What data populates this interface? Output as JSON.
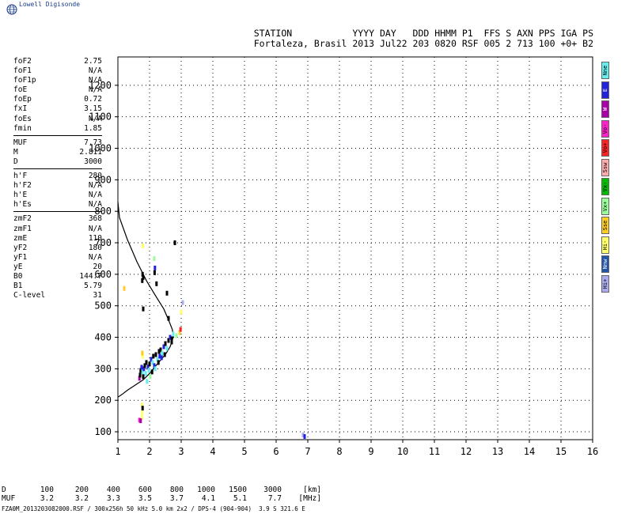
{
  "brand": {
    "name": "Lowell Digisonde",
    "logo_icon": "globe-icon"
  },
  "header": {
    "line1": "STATION           YYYY DAY   DDD HHMM P1  FFS S AXN PPS IGA PS",
    "line2": "Fortaleza, Brasil 2013 Jul22 203 0820 RSF 005 2 713 100 +0+ B2"
  },
  "parameters": {
    "group1": [
      {
        "label": "foF2",
        "value": "2.75"
      },
      {
        "label": "foF1",
        "value": "N/A"
      },
      {
        "label": "foF1p",
        "value": "N/A"
      },
      {
        "label": "foE",
        "value": "N/A"
      },
      {
        "label": "foEp",
        "value": "0.72"
      },
      {
        "label": "fxI",
        "value": "3.15"
      },
      {
        "label": "foEs",
        "value": "N/A"
      },
      {
        "label": "fmin",
        "value": "1.85"
      }
    ],
    "group2": [
      {
        "label": "MUF",
        "value": "7.73"
      },
      {
        "label": "M",
        "value": "2.811"
      },
      {
        "label": "D",
        "value": "3000"
      }
    ],
    "group3": [
      {
        "label": "h'F",
        "value": "280"
      },
      {
        "label": "h'F2",
        "value": "N/A"
      },
      {
        "label": "h'E",
        "value": "N/A"
      },
      {
        "label": "h'Es",
        "value": "N/A"
      }
    ],
    "group4": [
      {
        "label": "zmF2",
        "value": "368"
      },
      {
        "label": "zmF1",
        "value": "N/A"
      },
      {
        "label": "zmE",
        "value": "110"
      },
      {
        "label": "yF2",
        "value": "180"
      },
      {
        "label": "yF1",
        "value": "N/A"
      },
      {
        "label": "yE",
        "value": "20"
      },
      {
        "label": "B0",
        "value": "144.7"
      },
      {
        "label": "B1",
        "value": "5.79"
      },
      {
        "label": "C-level",
        "value": "31"
      }
    ]
  },
  "legend": [
    {
      "label": "Nne",
      "color": "#66eeee"
    },
    {
      "label": "E",
      "color": "#2222dd"
    },
    {
      "label": "W",
      "color": "#aa00aa"
    },
    {
      "label": "Vo-",
      "color": "#ff22cc"
    },
    {
      "label": "Vo+",
      "color": "#ff2222"
    },
    {
      "label": "Ssw",
      "color": "#ffaaaa"
    },
    {
      "label": "Vx-",
      "color": "#00bb00"
    },
    {
      "label": "Vx+",
      "color": "#99ff99"
    },
    {
      "label": "Sse",
      "color": "#ffcc22"
    },
    {
      "label": "Hi-",
      "color": "#ffff66"
    },
    {
      "label": "Nnw",
      "color": "#2255aa"
    },
    {
      "label": "Hi+",
      "color": "#aaaaee"
    }
  ],
  "muf_table": {
    "row1_label": "D",
    "row1_values": [
      "100",
      "200",
      "400",
      "600",
      "800",
      "1000",
      "1500",
      "3000"
    ],
    "row1_unit": "[km]",
    "row2_label": "MUF",
    "row2_values": [
      "3.2",
      "3.2",
      "3.3",
      "3.5",
      "3.7",
      "4.1",
      "5.1",
      "7.7"
    ],
    "row2_unit": "[MHz]"
  },
  "footer": "FZA0M_2013203082000.RSF / 300x256h 50 kHz 5.0 km 2x2 / DPS-4 (904-904)  3.9 S 321.6 E",
  "chart_data": {
    "type": "scatter",
    "xlim": [
      1,
      16
    ],
    "ylim": [
      75,
      1290
    ],
    "x_ticks": [
      1,
      2,
      3,
      4,
      5,
      6,
      7,
      8,
      9,
      10,
      11,
      12,
      13,
      14,
      15,
      16
    ],
    "y_ticks": [
      100,
      200,
      300,
      400,
      500,
      600,
      700,
      800,
      900,
      1000,
      1100,
      1200
    ],
    "grid": "dotted",
    "profile": {
      "x": [
        1.0,
        1.15,
        1.3,
        1.5,
        1.8,
        2.0,
        2.2,
        2.5,
        2.65,
        2.75,
        2.72,
        2.6,
        2.45,
        2.2,
        1.9,
        1.6,
        1.3,
        1.05,
        1.0
      ],
      "y": [
        210,
        220,
        232,
        245,
        265,
        285,
        310,
        345,
        370,
        400,
        425,
        455,
        490,
        530,
        580,
        640,
        710,
        780,
        830
      ]
    },
    "echoes": [
      {
        "x": 1.68,
        "y": 270,
        "c": "#aa00aa"
      },
      {
        "x": 1.7,
        "y": 280,
        "c": "#000000"
      },
      {
        "x": 1.72,
        "y": 295,
        "c": "#000000"
      },
      {
        "x": 1.75,
        "y": 305,
        "c": "#2222dd"
      },
      {
        "x": 1.78,
        "y": 290,
        "c": "#66eeee"
      },
      {
        "x": 1.8,
        "y": 275,
        "c": "#000000"
      },
      {
        "x": 1.82,
        "y": 300,
        "c": "#2222dd"
      },
      {
        "x": 1.85,
        "y": 310,
        "c": "#000000"
      },
      {
        "x": 1.88,
        "y": 285,
        "c": "#66eeee"
      },
      {
        "x": 1.9,
        "y": 320,
        "c": "#000000"
      },
      {
        "x": 1.95,
        "y": 305,
        "c": "#2222dd"
      },
      {
        "x": 1.98,
        "y": 295,
        "c": "#66eeee"
      },
      {
        "x": 2.0,
        "y": 315,
        "c": "#000000"
      },
      {
        "x": 2.05,
        "y": 330,
        "c": "#2222dd"
      },
      {
        "x": 2.1,
        "y": 320,
        "c": "#66eeee"
      },
      {
        "x": 2.12,
        "y": 340,
        "c": "#000000"
      },
      {
        "x": 2.15,
        "y": 310,
        "c": "#2222dd"
      },
      {
        "x": 2.2,
        "y": 345,
        "c": "#000000"
      },
      {
        "x": 2.25,
        "y": 330,
        "c": "#66eeee"
      },
      {
        "x": 2.3,
        "y": 355,
        "c": "#000000"
      },
      {
        "x": 2.32,
        "y": 340,
        "c": "#2222dd"
      },
      {
        "x": 2.35,
        "y": 360,
        "c": "#000000"
      },
      {
        "x": 2.4,
        "y": 350,
        "c": "#66eeee"
      },
      {
        "x": 2.45,
        "y": 370,
        "c": "#2222dd"
      },
      {
        "x": 2.5,
        "y": 380,
        "c": "#000000"
      },
      {
        "x": 2.55,
        "y": 365,
        "c": "#66eeee"
      },
      {
        "x": 2.6,
        "y": 390,
        "c": "#000000"
      },
      {
        "x": 2.65,
        "y": 400,
        "c": "#2222dd"
      },
      {
        "x": 2.7,
        "y": 385,
        "c": "#000000"
      },
      {
        "x": 2.75,
        "y": 410,
        "c": "#66eeee"
      },
      {
        "x": 2.85,
        "y": 405,
        "c": "#99ff99"
      },
      {
        "x": 2.95,
        "y": 415,
        "c": "#ffcc22"
      },
      {
        "x": 2.98,
        "y": 425,
        "c": "#ff2222"
      },
      {
        "x": 1.92,
        "y": 260,
        "c": "#66eeee"
      },
      {
        "x": 2.02,
        "y": 275,
        "c": "#99ff99"
      },
      {
        "x": 2.08,
        "y": 290,
        "c": "#000000"
      },
      {
        "x": 2.18,
        "y": 300,
        "c": "#66eeee"
      },
      {
        "x": 2.28,
        "y": 320,
        "c": "#000000"
      },
      {
        "x": 2.38,
        "y": 335,
        "c": "#2222dd"
      },
      {
        "x": 2.48,
        "y": 345,
        "c": "#000000"
      },
      {
        "x": 1.78,
        "y": 340,
        "c": "#ffff66"
      },
      {
        "x": 1.77,
        "y": 350,
        "c": "#ffcc22"
      },
      {
        "x": 1.76,
        "y": 185,
        "c": "#ffff66"
      },
      {
        "x": 1.78,
        "y": 175,
        "c": "#000000"
      },
      {
        "x": 1.77,
        "y": 160,
        "c": "#ffff66"
      },
      {
        "x": 1.76,
        "y": 145,
        "c": "#ffff66"
      },
      {
        "x": 1.68,
        "y": 137,
        "c": "#ff22cc"
      },
      {
        "x": 1.72,
        "y": 135,
        "c": "#aa00aa"
      },
      {
        "x": 1.78,
        "y": 600,
        "c": "#000000"
      },
      {
        "x": 1.8,
        "y": 590,
        "c": "#000000"
      },
      {
        "x": 1.77,
        "y": 580,
        "c": "#000000"
      },
      {
        "x": 1.79,
        "y": 690,
        "c": "#ffff66"
      },
      {
        "x": 2.15,
        "y": 650,
        "c": "#99ff99"
      },
      {
        "x": 2.17,
        "y": 620,
        "c": "#2222dd"
      },
      {
        "x": 2.16,
        "y": 605,
        "c": "#000000"
      },
      {
        "x": 1.8,
        "y": 490,
        "c": "#000000"
      },
      {
        "x": 2.22,
        "y": 570,
        "c": "#000000"
      },
      {
        "x": 2.55,
        "y": 540,
        "c": "#000000"
      },
      {
        "x": 2.8,
        "y": 700,
        "c": "#000000"
      },
      {
        "x": 3.05,
        "y": 510,
        "c": "#aaaaee"
      },
      {
        "x": 3.0,
        "y": 480,
        "c": "#ffff66"
      },
      {
        "x": 1.2,
        "y": 555,
        "c": "#ffcc22"
      },
      {
        "x": 6.85,
        "y": 90,
        "c": "#aaaaee"
      },
      {
        "x": 6.9,
        "y": 85,
        "c": "#2222dd"
      },
      {
        "x": 2.6,
        "y": 460,
        "c": "#000000"
      },
      {
        "x": 2.7,
        "y": 395,
        "c": "#000000"
      }
    ]
  }
}
